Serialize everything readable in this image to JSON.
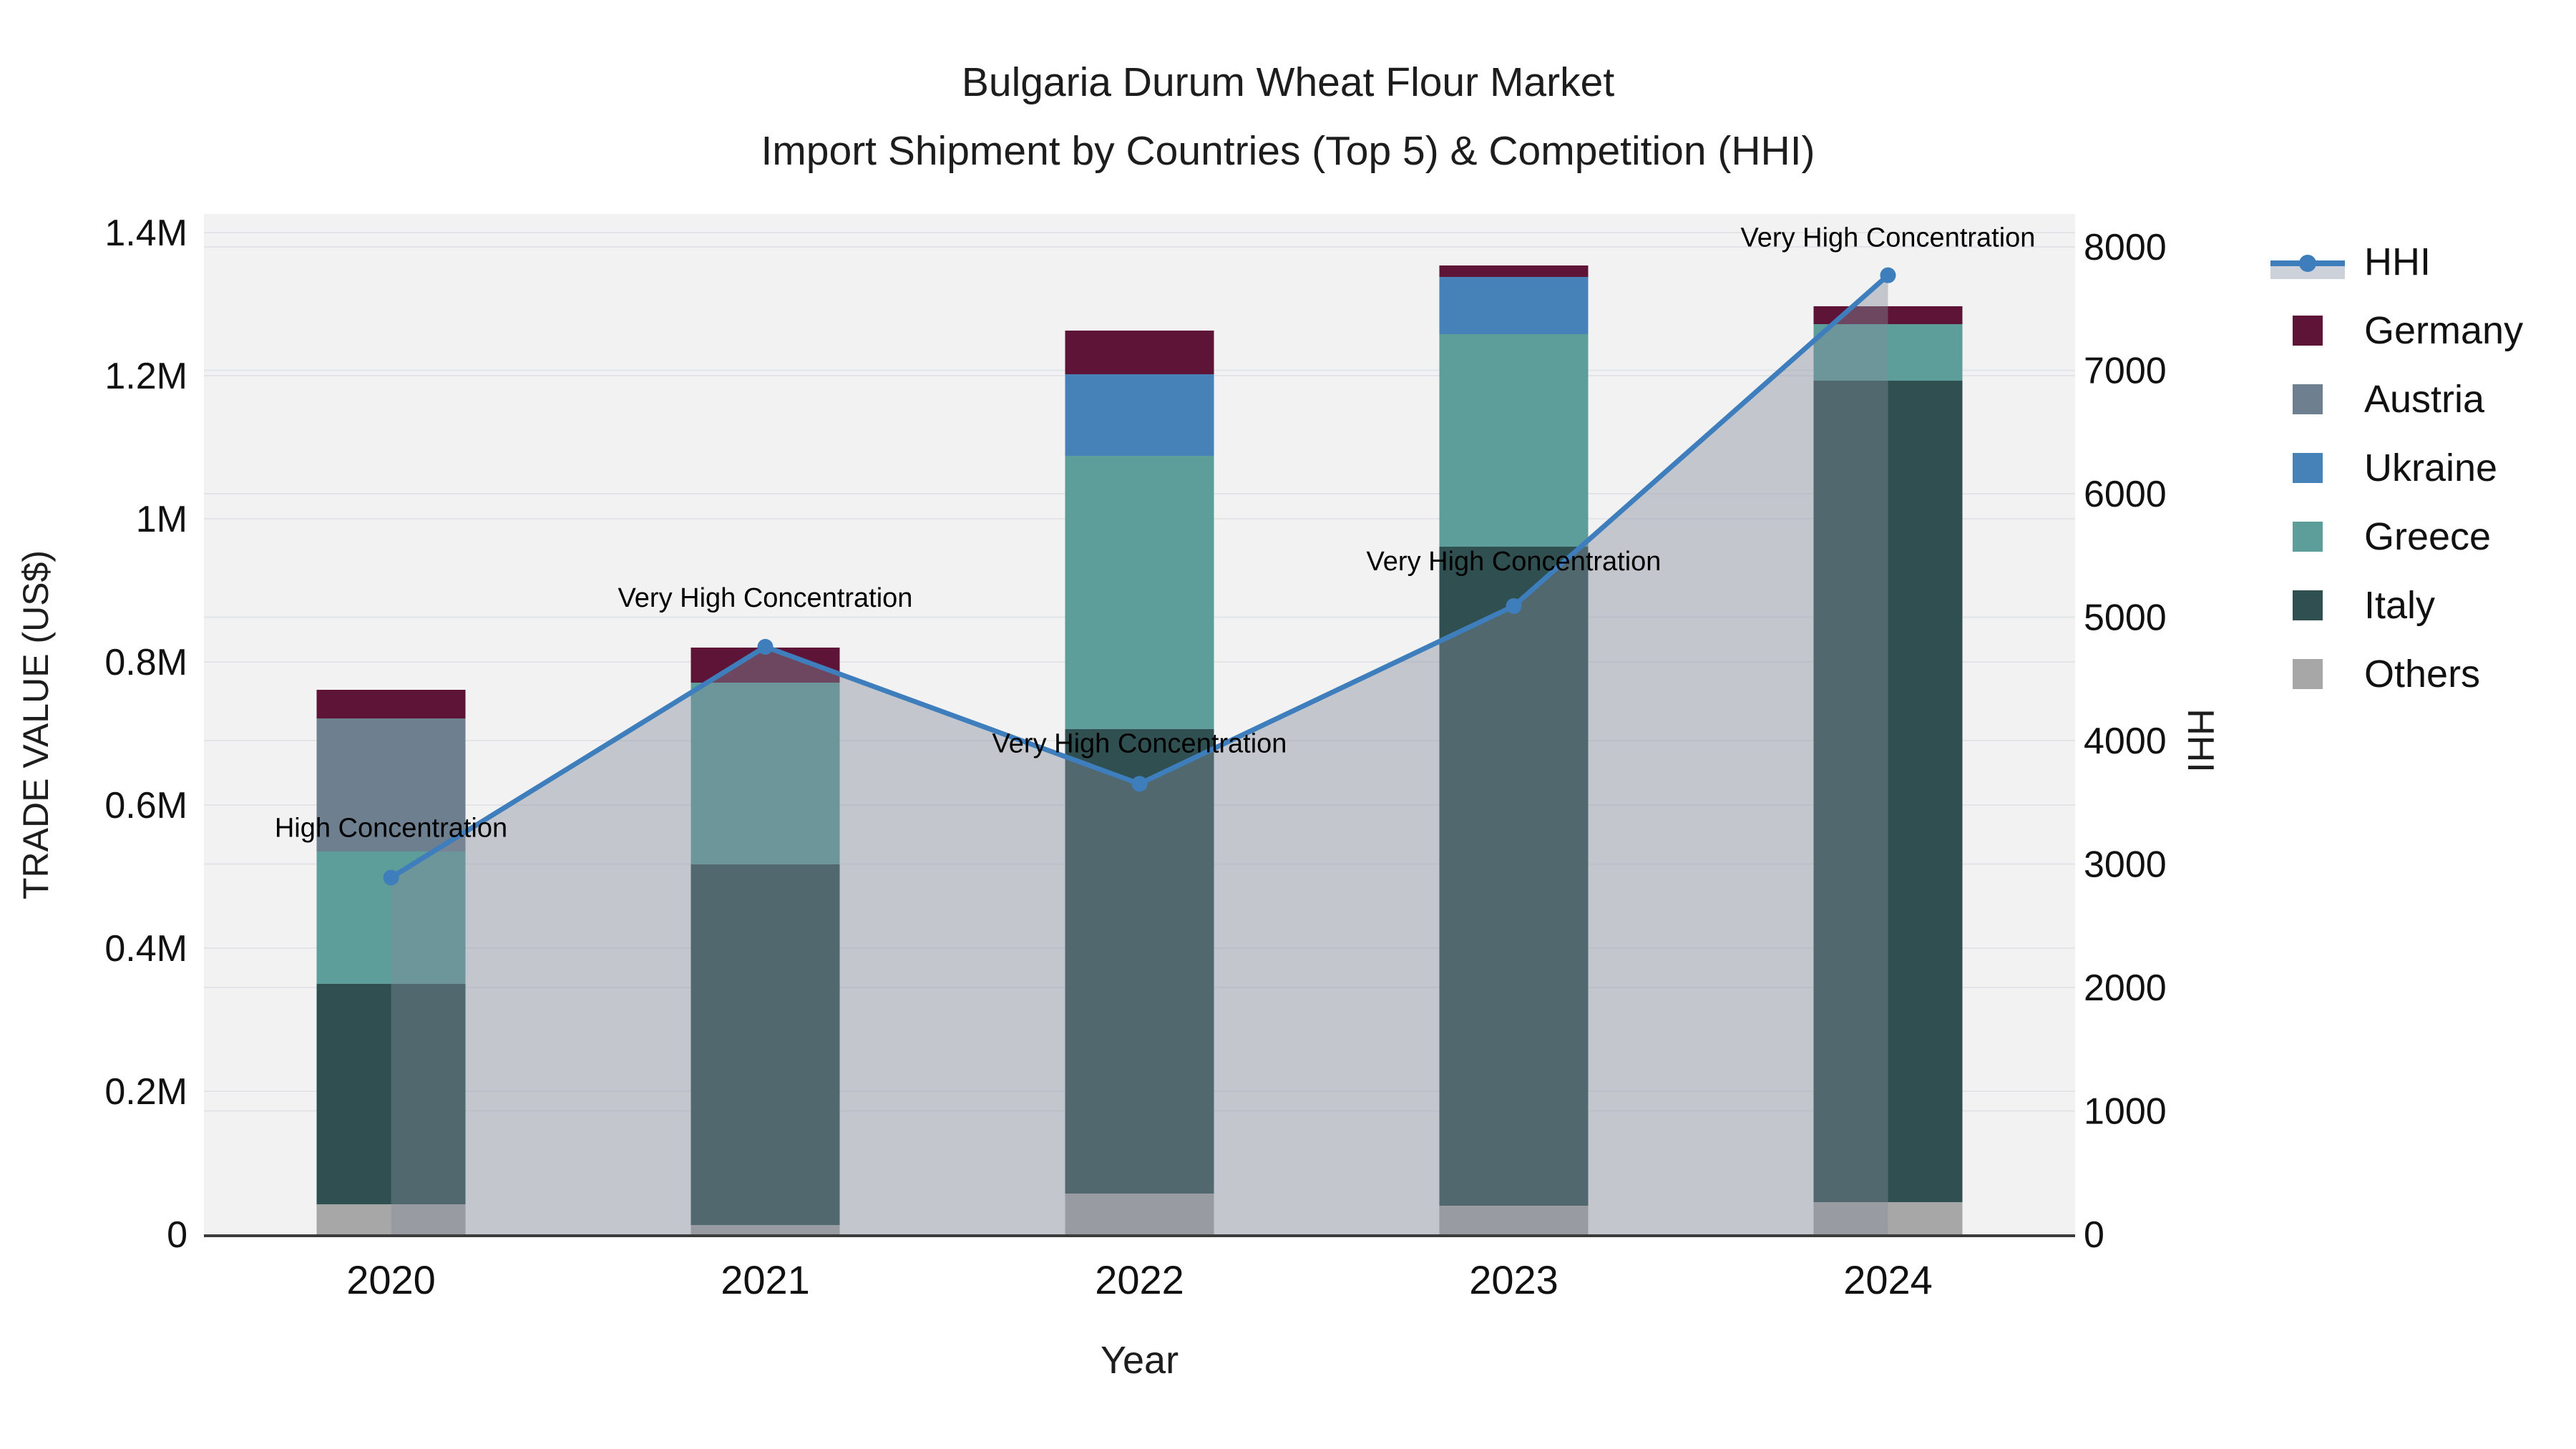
{
  "title": {
    "line1": "Bulgaria Durum Wheat Flour Market",
    "line2": "Import Shipment by Countries (Top 5) & Competition (HHI)"
  },
  "axes": {
    "x": {
      "title": "Year",
      "tick_labels": [
        "2020",
        "2021",
        "2022",
        "2023",
        "2024"
      ]
    },
    "y_left": {
      "title": "TRADE VALUE (US$)",
      "tick_labels": [
        "0",
        "0.2M",
        "0.4M",
        "0.6M",
        "0.8M",
        "1M",
        "1.2M",
        "1.4M"
      ],
      "tick_values": [
        0,
        200000,
        400000,
        600000,
        800000,
        1000000,
        1200000,
        1400000
      ],
      "range": [
        0,
        1400000
      ]
    },
    "y_right": {
      "title": "HHI",
      "tick_labels": [
        "0",
        "1000",
        "2000",
        "3000",
        "4000",
        "5000",
        "6000",
        "7000",
        "8000"
      ],
      "tick_values": [
        0,
        1000,
        2000,
        3000,
        4000,
        5000,
        6000,
        7000,
        8000
      ],
      "range": [
        0,
        8000
      ]
    }
  },
  "legend": {
    "items": [
      {
        "label": "HHI",
        "type": "line-area"
      },
      {
        "label": "Germany",
        "type": "bar"
      },
      {
        "label": "Austria",
        "type": "bar"
      },
      {
        "label": "Ukraine",
        "type": "bar"
      },
      {
        "label": "Greece",
        "type": "bar"
      },
      {
        "label": "Italy",
        "type": "bar"
      },
      {
        "label": "Others",
        "type": "bar"
      }
    ]
  },
  "annotations": [
    {
      "year": "2020",
      "text": "High Concentration"
    },
    {
      "year": "2021",
      "text": "Very High Concentration"
    },
    {
      "year": "2022",
      "text": "Very High Concentration"
    },
    {
      "year": "2023",
      "text": "Very High Concentration"
    },
    {
      "year": "2024",
      "text": "Very High Concentration"
    }
  ],
  "chart_data": {
    "type": "combo: stacked-bar + line-area",
    "categories": [
      "2020",
      "2021",
      "2022",
      "2023",
      "2024"
    ],
    "bar_value_unit": "US$ trade value",
    "series": [
      {
        "name": "Germany",
        "color": "#5e1436",
        "values": [
          40000,
          49000,
          61000,
          16000,
          25000
        ]
      },
      {
        "name": "Austria",
        "color": "#6e7f90",
        "values": [
          186000,
          0,
          0,
          0,
          0
        ]
      },
      {
        "name": "Ukraine",
        "color": "#4681b8",
        "values": [
          0,
          0,
          114000,
          80000,
          0
        ]
      },
      {
        "name": "Greece",
        "color": "#5d9e9a",
        "values": [
          185000,
          254000,
          382000,
          297000,
          79000
        ]
      },
      {
        "name": "Italy",
        "color": "#2f4f50",
        "values": [
          308000,
          504000,
          649000,
          921000,
          1148000
        ]
      },
      {
        "name": "Others",
        "color": "#a7a7a7",
        "values": [
          42000,
          13000,
          57000,
          40000,
          45000
        ]
      }
    ],
    "stack_order_bottom_to_top": [
      "Others",
      "Italy",
      "Greece",
      "Ukraine",
      "Austria",
      "Germany"
    ],
    "bar_totals": [
      761000,
      820000,
      1263000,
      1354000,
      1297000
    ],
    "line_series": {
      "name": "HHI",
      "color": "#3e7ebc",
      "area_fill": "rgba(130,140,155,0.42)",
      "values": [
        2890,
        4760,
        3650,
        5090,
        7770
      ]
    },
    "xlabel": "Year",
    "ylabel_left": "TRADE VALUE (US$)",
    "ylabel_right": "HHI",
    "ylim_left": [
      0,
      1400000
    ],
    "ylim_right": [
      0,
      8000
    ],
    "grid": true,
    "legend_position": "right"
  },
  "colors": {
    "figure_bg": "#ffffff",
    "plot_bg": "#f2f2f2",
    "gridline": "#e3e4e7",
    "axis_line": "#3b3b3b",
    "hhi_line": "#3e7ebc",
    "hhi_area": "rgba(130,140,155,0.42)",
    "legend_area_band": "#ccd1da",
    "text": "#111111"
  }
}
